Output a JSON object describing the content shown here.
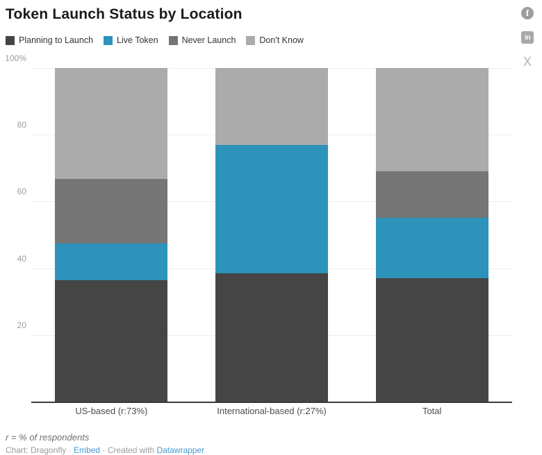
{
  "header": {
    "title": "Token Launch Status by Location",
    "social": [
      {
        "name": "facebook",
        "glyph": "f"
      },
      {
        "name": "linkedin",
        "glyph": "in"
      },
      {
        "name": "x",
        "glyph": "X"
      }
    ]
  },
  "chart_data": {
    "type": "bar",
    "stacked": true,
    "unit": "percent",
    "title": "Token Launch Status by Location",
    "categories": [
      "US-based (r:73%)",
      "International-based (r:27%)",
      "Total"
    ],
    "series": [
      {
        "name": "Planning to Launch",
        "color": "#454545",
        "values": [
          36.4,
          38.5,
          37
        ]
      },
      {
        "name": "Live Token",
        "color": "#2d93ba",
        "values": [
          11.1,
          38.5,
          18
        ]
      },
      {
        "name": "Never Launch",
        "color": "#757575",
        "values": [
          19.2,
          0,
          14
        ]
      },
      {
        "name": "Don't Know",
        "color": "#ababab",
        "values": [
          33.3,
          23,
          31
        ]
      }
    ],
    "ylim": [
      0,
      100
    ],
    "yticks": [
      {
        "value": 20,
        "label": "20"
      },
      {
        "value": 40,
        "label": "40"
      },
      {
        "value": 60,
        "label": "60"
      },
      {
        "value": 80,
        "label": "80"
      },
      {
        "value": 100,
        "label": "100%"
      }
    ],
    "grid": true,
    "legend_position": "top"
  },
  "footer": {
    "note": "r = % of respondents",
    "attribution": {
      "prefix": "Chart: Dragonfly · ",
      "embed_link": "Embed",
      "middle": " · Created with ",
      "datawrapper_link": "Datawrapper"
    }
  }
}
